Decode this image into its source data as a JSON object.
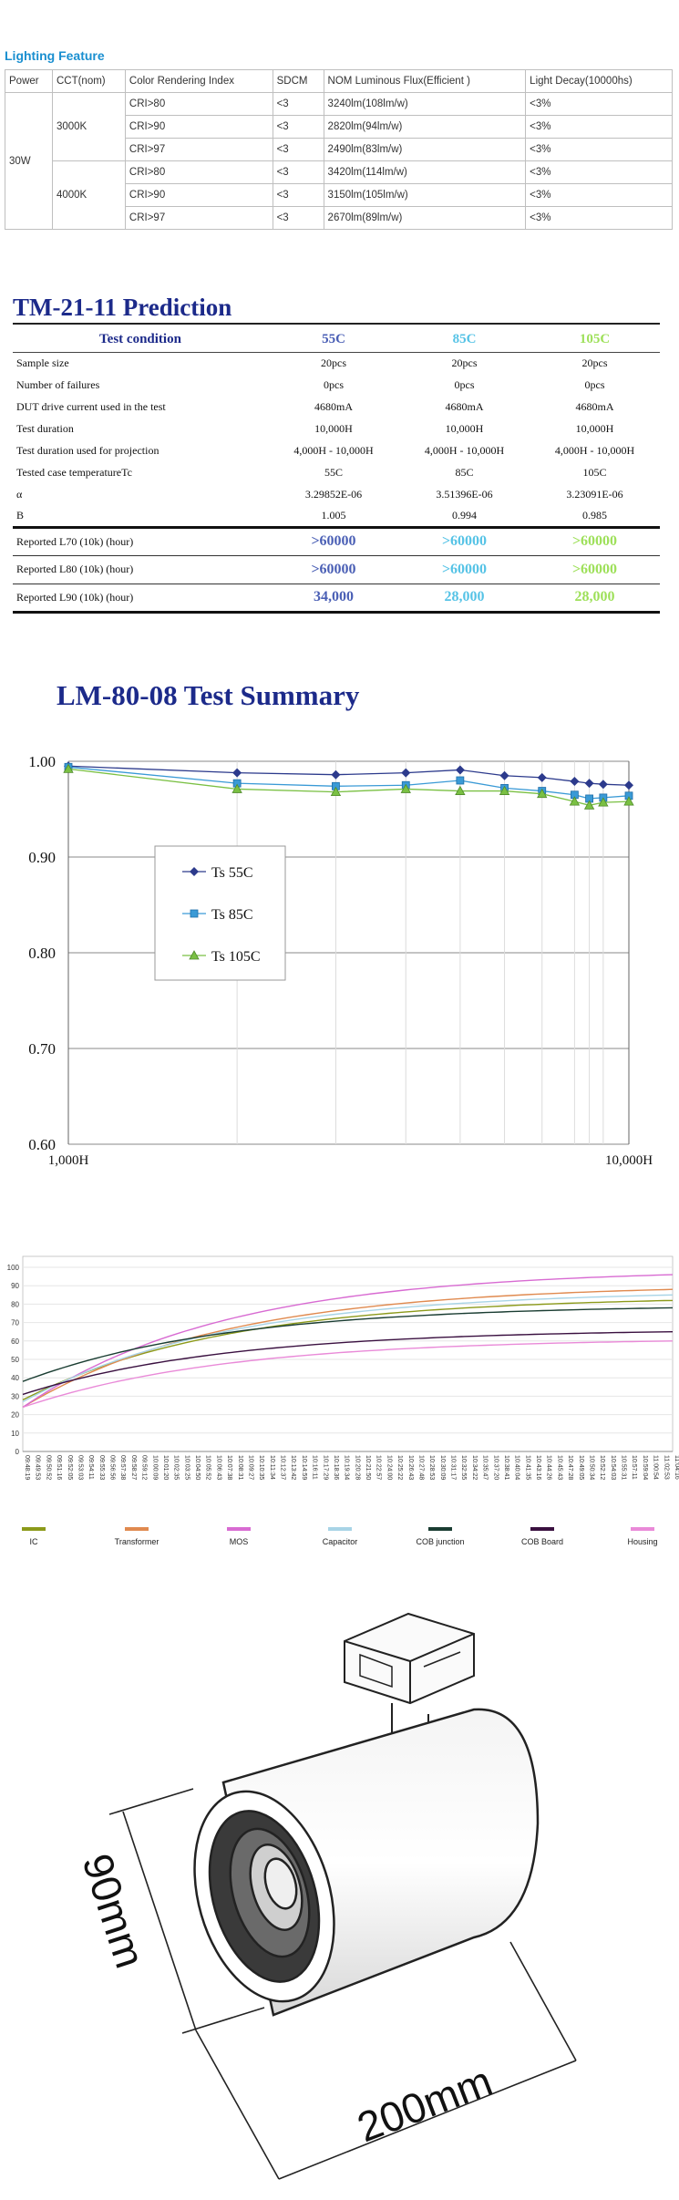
{
  "feature": {
    "title": "Lighting Feature",
    "headers": [
      "Power",
      "CCT(nom)",
      "Color Rendering Index",
      "SDCM",
      "NOM Luminous Flux(Efficient )",
      "Light Decay(10000hs)"
    ],
    "power": "30W",
    "groups": [
      {
        "cct": "3000K",
        "rows": [
          {
            "cri": "CRI>80",
            "sdcm": "<3",
            "flux": "3240lm(108lm/w)",
            "decay": "<3%"
          },
          {
            "cri": "CRI>90",
            "sdcm": "<3",
            "flux": "2820lm(94lm/w)",
            "decay": "<3%"
          },
          {
            "cri": "CRI>97",
            "sdcm": "<3",
            "flux": "2490lm(83lm/w)",
            "decay": "<3%"
          }
        ]
      },
      {
        "cct": "4000K",
        "rows": [
          {
            "cri": "CRI>80",
            "sdcm": "<3",
            "flux": "3420lm(114lm/w)",
            "decay": "<3%"
          },
          {
            "cri": "CRI>90",
            "sdcm": "<3",
            "flux": "3150lm(105lm/w)",
            "decay": "<3%"
          },
          {
            "cri": "CRI>97",
            "sdcm": "<3",
            "flux": "2670lm(89lm/w)",
            "decay": "<3%"
          }
        ]
      }
    ]
  },
  "tm21": {
    "title": "TM-21-11 Prediction",
    "header": {
      "label": "Test condition",
      "c55": "55C",
      "c85": "85C",
      "c105": "105C"
    },
    "colors": {
      "c55": "#4a5fb5",
      "c85": "#56c3e6",
      "c105": "#9ee05a"
    },
    "rows": [
      {
        "label": "Sample size",
        "v": [
          "20pcs",
          "20pcs",
          "20pcs"
        ]
      },
      {
        "label": "Number of failures",
        "v": [
          "0pcs",
          "0pcs",
          "0pcs"
        ]
      },
      {
        "label": "DUT drive current used in the test",
        "v": [
          "4680mA",
          "4680mA",
          "4680mA"
        ]
      },
      {
        "label": "Test duration",
        "v": [
          "10,000H",
          "10,000H",
          "10,000H"
        ]
      },
      {
        "label": "Test duration used for projection",
        "v": [
          "4,000H  -  10,000H",
          "4,000H  -  10,000H",
          "4,000H  -  10,000H"
        ]
      },
      {
        "label": "Tested case temperatureTc",
        "v": [
          "55C",
          "85C",
          "105C"
        ]
      },
      {
        "label": "α",
        "v": [
          "3.29852E-06",
          "3.51396E-06",
          "3.23091E-06"
        ]
      },
      {
        "label": "B",
        "v": [
          "1.005",
          "0.994",
          "0.985"
        ]
      }
    ],
    "reported": [
      {
        "label": "Reported L70   (10k) (hour)",
        "v": [
          ">60000",
          ">60000",
          ">60000"
        ]
      },
      {
        "label": "Reported L80   (10k) (hour)",
        "v": [
          ">60000",
          ">60000",
          ">60000"
        ]
      },
      {
        "label": "Reported L90   (10k) (hour)",
        "v": [
          "34,000",
          "28,000",
          "28,000"
        ]
      }
    ]
  },
  "chart_data": [
    {
      "type": "line",
      "title": "LM-80-08 Test Summary",
      "xscale": "log",
      "xlim": [
        1000,
        10000
      ],
      "ylim": [
        0.6,
        1.0
      ],
      "yticks": [
        "0.60",
        "0.70",
        "0.80",
        "0.90",
        "1.00"
      ],
      "xticks": [
        "1,000H",
        "10,000H"
      ],
      "legend_position": "left-middle",
      "grid": true,
      "x": [
        1000,
        2000,
        3000,
        4000,
        5000,
        6000,
        7000,
        8000,
        8500,
        9000,
        10000
      ],
      "series": [
        {
          "name": "Ts 55C",
          "color": "#2c3a8c",
          "marker": "diamond",
          "values": [
            0.995,
            0.988,
            0.986,
            0.988,
            0.991,
            0.985,
            0.983,
            0.979,
            0.977,
            0.976,
            0.975
          ]
        },
        {
          "name": "Ts 85C",
          "color": "#3a9ad6",
          "marker": "square",
          "values": [
            0.994,
            0.977,
            0.974,
            0.975,
            0.98,
            0.972,
            0.969,
            0.965,
            0.961,
            0.962,
            0.964
          ]
        },
        {
          "name": "Ts 105C",
          "color": "#7ac043",
          "marker": "triangle",
          "values": [
            0.992,
            0.971,
            0.968,
            0.971,
            0.969,
            0.969,
            0.966,
            0.958,
            0.954,
            0.957,
            0.958
          ]
        }
      ]
    },
    {
      "type": "line",
      "ylim": [
        0,
        100
      ],
      "yticks": [
        "0",
        "10",
        "20",
        "30",
        "40",
        "50",
        "60",
        "70",
        "80",
        "90",
        "100"
      ],
      "grid": true,
      "legend_position": "bottom",
      "xticks": [
        "09:48:19",
        "09:49:53",
        "09:50:52",
        "09:51:16",
        "09:52:05",
        "09:53:03",
        "09:54:11",
        "09:55:33",
        "09:56:56",
        "09:57:38",
        "09:58:27",
        "09:59:12",
        "10:00:09",
        "10:01:20",
        "10:02:35",
        "10:03:25",
        "10:04:50",
        "10:05:52",
        "10:06:43",
        "10:07:38",
        "10:08:31",
        "10:09:27",
        "10:10:35",
        "10:11:34",
        "10:12:37",
        "10:13:42",
        "10:14:59",
        "10:16:11",
        "10:17:29",
        "10:18:36",
        "10:19:34",
        "10:20:28",
        "10:21:50",
        "10:22:57",
        "10:24:00",
        "10:25:22",
        "10:26:43",
        "10:27:48",
        "10:28:53",
        "10:30:09",
        "10:31:17",
        "10:32:55",
        "10:34:22",
        "10:35:47",
        "10:37:20",
        "10:38:41",
        "10:40:04",
        "10:41:35",
        "10:43:16",
        "10:44:26",
        "10:45:43",
        "10:47:28",
        "10:49:05",
        "10:50:34",
        "10:52:12",
        "10:54:03",
        "10:55:31",
        "10:57:11",
        "10:59:04",
        "11:00:54",
        "11:02:53",
        "11:04:16"
      ],
      "series": [
        {
          "name": "IC",
          "color": "#8c9a1a",
          "start": 28,
          "end": 82
        },
        {
          "name": "Transformer",
          "color": "#e08a4f",
          "start": 24,
          "end": 88
        },
        {
          "name": "MOS",
          "color": "#d86bd2",
          "start": 24,
          "end": 96
        },
        {
          "name": "Capacitor",
          "color": "#a8d4e6",
          "start": 27,
          "end": 85
        },
        {
          "name": "COB  junction",
          "color": "#1a3d32",
          "start": 38,
          "end": 78
        },
        {
          "name": "COB Board",
          "color": "#3a1040",
          "start": 31,
          "end": 65
        },
        {
          "name": "Housing",
          "color": "#e98ad8",
          "start": 24,
          "end": 60
        }
      ]
    }
  ],
  "product": {
    "dim_height": "90mm",
    "dim_length": "200mm"
  }
}
